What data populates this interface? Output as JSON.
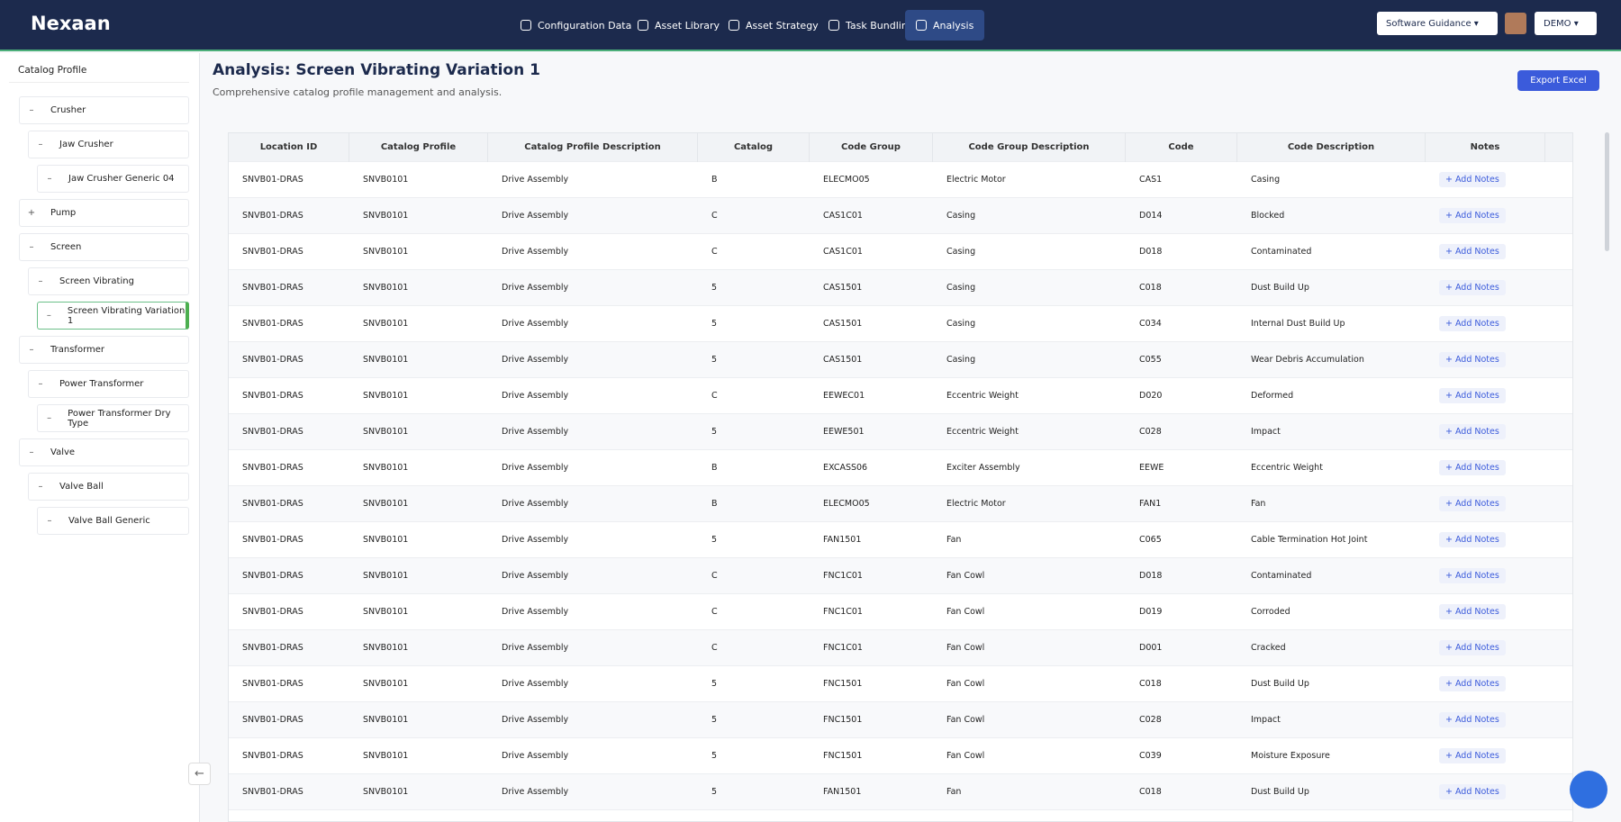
{
  "nav": {
    "logo": "Nexaan",
    "items": [
      "Configuration Data",
      "Asset Library",
      "Asset Strategy",
      "Task Bundling",
      "Analysis"
    ],
    "active": 4,
    "guidance": "Software Guidance",
    "user": "DEMO"
  },
  "sidebar": {
    "title": "Catalog Profile",
    "nodes": [
      {
        "label": "Crusher",
        "level": 0,
        "toggle": "–"
      },
      {
        "label": "Jaw Crusher",
        "level": 1,
        "toggle": "–"
      },
      {
        "label": "Jaw Crusher Generic 04",
        "level": 2,
        "toggle": "–"
      },
      {
        "label": "Pump",
        "level": 0,
        "toggle": "+"
      },
      {
        "label": "Screen",
        "level": 0,
        "toggle": "–"
      },
      {
        "label": "Screen Vibrating",
        "level": 1,
        "toggle": "–"
      },
      {
        "label": "Screen Vibrating Variation 1",
        "level": 2,
        "toggle": "–",
        "selected": true
      },
      {
        "label": "Transformer",
        "level": 0,
        "toggle": "–"
      },
      {
        "label": "Power Transformer",
        "level": 1,
        "toggle": "–"
      },
      {
        "label": "Power Transformer Dry Type",
        "level": 2,
        "toggle": "–"
      },
      {
        "label": "Valve",
        "level": 0,
        "toggle": "–"
      },
      {
        "label": "Valve Ball",
        "level": 1,
        "toggle": "–"
      },
      {
        "label": "Valve Ball Generic",
        "level": 2,
        "toggle": "–"
      }
    ]
  },
  "header": {
    "title": "Analysis: Screen Vibrating Variation 1",
    "subtitle": "Comprehensive catalog profile management and analysis.",
    "export": "Export Excel"
  },
  "table": {
    "columns": [
      "Location ID",
      "Catalog Profile",
      "Catalog Profile Description",
      "Catalog",
      "Code Group",
      "Code Group Description",
      "Code",
      "Code Description",
      "Notes"
    ],
    "add_notes": "+ Add Notes",
    "rows": [
      [
        "SNVB01-DRAS",
        "SNVB0101",
        "Drive Assembly",
        "B",
        "ELECMO05",
        "Electric Motor",
        "CAS1",
        "Casing"
      ],
      [
        "SNVB01-DRAS",
        "SNVB0101",
        "Drive Assembly",
        "C",
        "CAS1C01",
        "Casing",
        "D014",
        "Blocked"
      ],
      [
        "SNVB01-DRAS",
        "SNVB0101",
        "Drive Assembly",
        "C",
        "CAS1C01",
        "Casing",
        "D018",
        "Contaminated"
      ],
      [
        "SNVB01-DRAS",
        "SNVB0101",
        "Drive Assembly",
        "5",
        "CAS1501",
        "Casing",
        "C018",
        "Dust Build Up"
      ],
      [
        "SNVB01-DRAS",
        "SNVB0101",
        "Drive Assembly",
        "5",
        "CAS1501",
        "Casing",
        "C034",
        "Internal Dust Build Up"
      ],
      [
        "SNVB01-DRAS",
        "SNVB0101",
        "Drive Assembly",
        "5",
        "CAS1501",
        "Casing",
        "C055",
        "Wear Debris Accumulation"
      ],
      [
        "SNVB01-DRAS",
        "SNVB0101",
        "Drive Assembly",
        "C",
        "EEWEC01",
        "Eccentric Weight",
        "D020",
        "Deformed"
      ],
      [
        "SNVB01-DRAS",
        "SNVB0101",
        "Drive Assembly",
        "5",
        "EEWE501",
        "Eccentric Weight",
        "C028",
        "Impact"
      ],
      [
        "SNVB01-DRAS",
        "SNVB0101",
        "Drive Assembly",
        "B",
        "EXCASS06",
        "Exciter Assembly",
        "EEWE",
        "Eccentric Weight"
      ],
      [
        "SNVB01-DRAS",
        "SNVB0101",
        "Drive Assembly",
        "B",
        "ELECMO05",
        "Electric Motor",
        "FAN1",
        "Fan"
      ],
      [
        "SNVB01-DRAS",
        "SNVB0101",
        "Drive Assembly",
        "5",
        "FAN1501",
        "Fan",
        "C065",
        "Cable Termination Hot Joint"
      ],
      [
        "SNVB01-DRAS",
        "SNVB0101",
        "Drive Assembly",
        "C",
        "FNC1C01",
        "Fan Cowl",
        "D018",
        "Contaminated"
      ],
      [
        "SNVB01-DRAS",
        "SNVB0101",
        "Drive Assembly",
        "C",
        "FNC1C01",
        "Fan Cowl",
        "D019",
        "Corroded"
      ],
      [
        "SNVB01-DRAS",
        "SNVB0101",
        "Drive Assembly",
        "C",
        "FNC1C01",
        "Fan Cowl",
        "D001",
        "Cracked"
      ],
      [
        "SNVB01-DRAS",
        "SNVB0101",
        "Drive Assembly",
        "5",
        "FNC1501",
        "Fan Cowl",
        "C018",
        "Dust Build Up"
      ],
      [
        "SNVB01-DRAS",
        "SNVB0101",
        "Drive Assembly",
        "5",
        "FNC1501",
        "Fan Cowl",
        "C028",
        "Impact"
      ],
      [
        "SNVB01-DRAS",
        "SNVB0101",
        "Drive Assembly",
        "5",
        "FNC1501",
        "Fan Cowl",
        "C039",
        "Moisture Exposure"
      ],
      [
        "SNVB01-DRAS",
        "SNVB0101",
        "Drive Assembly",
        "5",
        "FAN1501",
        "Fan",
        "C018",
        "Dust Build Up"
      ]
    ]
  }
}
